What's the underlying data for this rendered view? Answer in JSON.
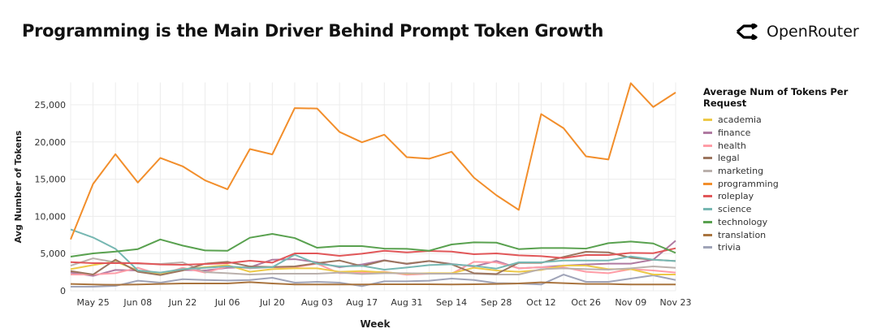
{
  "title": "Programming is the Main Driver Behind Prompt Token Growth",
  "brand": {
    "name": "OpenRouter",
    "icon": "openrouter-logo-icon"
  },
  "chart_data": {
    "type": "line",
    "xlabel": "Week",
    "ylabel": "Avg Number of Tokens",
    "ylim": [
      0,
      28000
    ],
    "yticks": [
      "0",
      "5,000",
      "10,000",
      "15,000",
      "20,000",
      "25,000"
    ],
    "ytick_values": [
      0,
      5000,
      10000,
      15000,
      20000,
      25000
    ],
    "x": [
      "May 18",
      "May 25",
      "Jun 01",
      "Jun 08",
      "Jun 15",
      "Jun 22",
      "Jun 29",
      "Jul 06",
      "Jul 13",
      "Jul 20",
      "Jul 27",
      "Aug 03",
      "Aug 10",
      "Aug 17",
      "Aug 24",
      "Aug 31",
      "Sep 07",
      "Sep 14",
      "Sep 21",
      "Sep 28",
      "Oct 05",
      "Oct 12",
      "Oct 19",
      "Oct 26",
      "Nov 02",
      "Nov 09",
      "Nov 16",
      "Nov 23"
    ],
    "xticks": [
      "May 25",
      "Jun 08",
      "Jun 22",
      "Jul 06",
      "Jul 20",
      "Aug 03",
      "Aug 17",
      "Aug 31",
      "Sep 14",
      "Sep 28",
      "Oct 12",
      "Oct 26",
      "Nov 09",
      "Nov 23"
    ],
    "grid": true,
    "legend_title": "Average Num of Tokens Per Request",
    "legend_position": "right",
    "series": [
      {
        "name": "academia",
        "color": "#edc948",
        "values": [
          2910,
          3450,
          3930,
          2730,
          2180,
          2910,
          3160,
          3450,
          2550,
          2910,
          3020,
          3020,
          2550,
          2650,
          2470,
          2290,
          2360,
          2360,
          3090,
          2730,
          2550,
          2800,
          3380,
          3380,
          2910,
          2910,
          2180,
          2180
        ]
      },
      {
        "name": "finance",
        "color": "#b07aa1",
        "values": [
          2440,
          2000,
          2800,
          2730,
          2180,
          2800,
          2730,
          3090,
          3160,
          4180,
          4250,
          3820,
          3160,
          3530,
          4110,
          3600,
          4000,
          3600,
          3270,
          4000,
          3020,
          3160,
          3380,
          3530,
          3640,
          3640,
          4180,
          6730
        ]
      },
      {
        "name": "health",
        "color": "#ff9da7",
        "values": [
          2180,
          2180,
          2360,
          3090,
          2180,
          3090,
          2440,
          3270,
          3020,
          3160,
          3160,
          3640,
          2360,
          2440,
          2550,
          2150,
          2290,
          2290,
          3890,
          3820,
          3020,
          3160,
          3160,
          2550,
          2360,
          2910,
          2730,
          2440
        ]
      },
      {
        "name": "legal",
        "color": "#9c755f",
        "values": [
          2650,
          2180,
          4180,
          2550,
          2110,
          2730,
          3640,
          3890,
          3270,
          3200,
          3270,
          3710,
          4070,
          3310,
          4070,
          3640,
          4000,
          3560,
          2360,
          2250,
          3750,
          3750,
          4550,
          5240,
          5160,
          4440,
          4180,
          4000
        ]
      },
      {
        "name": "marketing",
        "color": "#bab0ac",
        "values": [
          3380,
          4360,
          3820,
          3640,
          3600,
          3820,
          2510,
          2360,
          2180,
          2290,
          2290,
          2290,
          2440,
          2250,
          2360,
          2360,
          2290,
          2290,
          2290,
          2180,
          2180,
          2910,
          3020,
          2910,
          2840,
          3020,
          3270,
          3090
        ]
      },
      {
        "name": "programming",
        "color": "#f28e2b",
        "values": [
          6900,
          14360,
          18360,
          14550,
          17850,
          16730,
          14840,
          13640,
          19050,
          18330,
          24550,
          24500,
          21350,
          19960,
          20980,
          17960,
          17750,
          18690,
          15200,
          12840,
          10870,
          23750,
          21850,
          18070,
          17640,
          27900,
          24700,
          26650
        ]
      },
      {
        "name": "roleplay",
        "color": "#e15759",
        "values": [
          3850,
          3710,
          3710,
          3710,
          3530,
          3490,
          3600,
          3710,
          4040,
          3780,
          5020,
          5020,
          4690,
          4980,
          5380,
          5160,
          5350,
          5270,
          4910,
          5020,
          4760,
          4650,
          4400,
          4800,
          4800,
          5090,
          5050,
          5710
        ]
      },
      {
        "name": "science",
        "color": "#76b7b2",
        "values": [
          8250,
          7160,
          5640,
          2730,
          2440,
          2910,
          3090,
          3270,
          3090,
          3160,
          4840,
          3640,
          3270,
          3350,
          2840,
          3130,
          3450,
          3560,
          3350,
          2980,
          3820,
          3820,
          4070,
          4070,
          4070,
          4620,
          4180,
          4000
        ]
      },
      {
        "name": "technology",
        "color": "#59a14f",
        "values": [
          4580,
          5020,
          5270,
          5600,
          6900,
          6070,
          5420,
          5380,
          7130,
          7640,
          7090,
          5780,
          6000,
          6000,
          5670,
          5640,
          5380,
          6220,
          6510,
          6470,
          5600,
          5750,
          5750,
          5670,
          6400,
          6620,
          6360,
          5090
        ]
      },
      {
        "name": "translation",
        "color": "#a9743f",
        "values": [
          910,
          840,
          800,
          840,
          910,
          980,
          980,
          980,
          1160,
          980,
          840,
          840,
          840,
          840,
          870,
          870,
          870,
          840,
          870,
          910,
          980,
          1130,
          1020,
          910,
          910,
          840,
          840,
          840
        ]
      },
      {
        "name": "trivia",
        "color": "#a0a4b8",
        "values": [
          550,
          550,
          650,
          1350,
          1090,
          1560,
          1450,
          1380,
          1450,
          1750,
          1090,
          1200,
          1090,
          620,
          1270,
          1270,
          1350,
          1640,
          1450,
          1020,
          980,
          840,
          2180,
          1200,
          1200,
          1640,
          2070,
          1450
        ]
      }
    ]
  }
}
